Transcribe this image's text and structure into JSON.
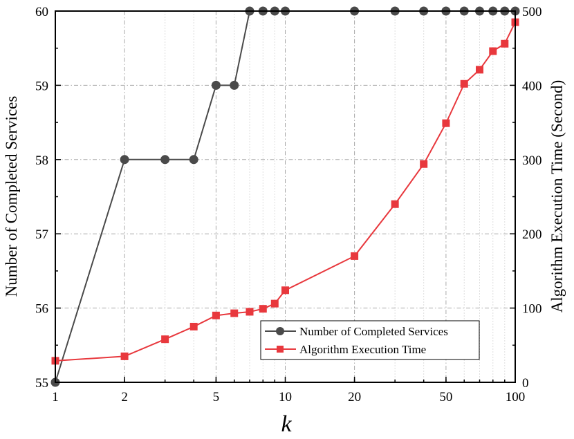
{
  "chart_data": {
    "type": "line",
    "x_scale": "log",
    "xlabel": "k",
    "ylabel_left": "Number of Completed Services",
    "ylabel_right": "Algorithm Execution Time (Second)",
    "xlim": [
      1,
      100
    ],
    "ylim_left": [
      55,
      60
    ],
    "ylim_right": [
      0,
      500
    ],
    "x_ticks": [
      1,
      2,
      5,
      10,
      20,
      50,
      100
    ],
    "x_tick_labels": [
      "1",
      "2",
      "5",
      "10",
      "20",
      "50",
      "100"
    ],
    "y_left_ticks": [
      55,
      56,
      57,
      58,
      59,
      60
    ],
    "y_left_tick_labels": [
      "55",
      "56",
      "57",
      "58",
      "59",
      "60"
    ],
    "y_right_ticks": [
      0,
      100,
      200,
      300,
      400,
      500
    ],
    "y_right_tick_labels": [
      "0",
      "100",
      "200",
      "300",
      "400",
      "500"
    ],
    "x": [
      1,
      2,
      3,
      4,
      5,
      6,
      7,
      8,
      9,
      10,
      20,
      30,
      40,
      50,
      60,
      70,
      80,
      90,
      100
    ],
    "grid": true,
    "legend_position": "lower-right",
    "series": [
      {
        "name": "Number of Completed Services",
        "axis": "left",
        "color": "#4a4a4a",
        "marker": "circle",
        "values": [
          55,
          58,
          58,
          58,
          59,
          59,
          60,
          60,
          60,
          60,
          60,
          60,
          60,
          60,
          60,
          60,
          60,
          60,
          60
        ]
      },
      {
        "name": "Algorithm Execution Time",
        "axis": "right",
        "color": "#e8383d",
        "marker": "square",
        "values": [
          29,
          35,
          58,
          75,
          90,
          93,
          95,
          99,
          106,
          124,
          170,
          240,
          294,
          349,
          402,
          421,
          446,
          456,
          485
        ]
      }
    ]
  }
}
